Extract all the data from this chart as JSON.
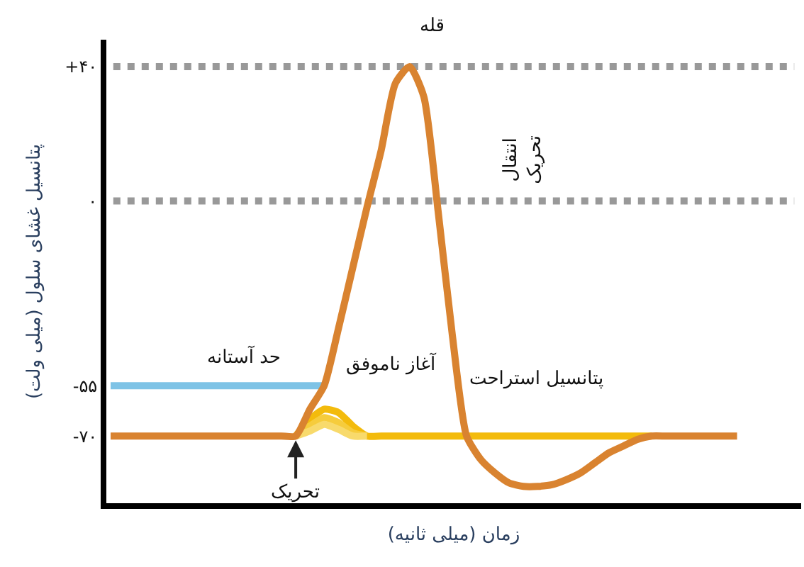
{
  "chart_data": {
    "type": "line",
    "xlabel": "زمان (میلی ثانیه)",
    "ylabel": "پتانسیل غشای سلول (میلی ولت)",
    "categories": [
      null,
      null,
      null,
      null,
      null,
      null,
      null,
      null,
      null,
      null,
      null,
      null,
      null,
      null,
      null,
      null,
      null,
      null,
      null,
      null,
      null,
      null,
      null,
      null,
      null,
      null,
      null,
      null,
      null,
      null,
      null,
      null,
      null,
      null,
      null,
      null,
      null,
      null,
      null,
      null,
      null,
      null,
      null,
      null,
      null
    ],
    "series": [
      {
        "color": "#7ec3e6",
        "values": [
          -55,
          -55,
          -55,
          -55,
          -55,
          -55,
          -55,
          -55,
          -55,
          -55,
          -55,
          -55,
          -55,
          -55,
          -55,
          -55,
          null,
          null,
          null,
          null,
          null,
          null,
          null,
          null,
          null,
          null,
          null,
          null,
          null,
          null,
          null,
          null,
          null,
          null,
          null,
          null,
          null,
          null,
          null,
          null,
          null,
          null,
          null,
          null,
          null
        ]
      },
      {
        "color": "#f3bb0c",
        "values": [
          null,
          null,
          null,
          null,
          null,
          null,
          null,
          null,
          null,
          null,
          null,
          null,
          null,
          -70,
          -65,
          -62,
          -63,
          -67,
          -70,
          -70,
          -70,
          -70,
          -70,
          -70,
          -70,
          -70,
          -70,
          -70,
          -70,
          -70,
          -70,
          -70,
          -70,
          -70,
          -70,
          -70,
          -70,
          -70,
          -70,
          null,
          null,
          null,
          null,
          null,
          null
        ]
      },
      {
        "color": "#f6cc3c",
        "values": [
          null,
          null,
          null,
          null,
          null,
          null,
          null,
          null,
          null,
          null,
          null,
          null,
          null,
          -70,
          -67,
          -64.5,
          -66,
          -69,
          -70,
          null,
          null,
          null,
          null,
          null,
          null,
          null,
          null,
          null,
          null,
          null,
          null,
          null,
          null,
          null,
          null,
          null,
          null,
          null,
          null,
          null,
          null,
          null,
          null,
          null,
          null
        ]
      },
      {
        "color": "#f8da6c",
        "values": [
          null,
          null,
          null,
          null,
          null,
          null,
          null,
          null,
          null,
          null,
          null,
          null,
          null,
          -70,
          -68.5,
          -66.5,
          -68,
          -70,
          -70,
          null,
          null,
          null,
          null,
          null,
          null,
          null,
          null,
          null,
          null,
          null,
          null,
          null,
          null,
          null,
          null,
          null,
          null,
          null,
          null,
          null,
          null,
          null,
          null,
          null,
          null
        ]
      },
      {
        "color": "#d98330",
        "values": [
          -70,
          -70,
          -70,
          -70,
          -70,
          -70,
          -70,
          -70,
          -70,
          -70,
          -70,
          -70,
          -70,
          -70,
          -62,
          -55,
          -38,
          -20,
          -2,
          15,
          35,
          40,
          31,
          -3,
          -40,
          -70,
          -77,
          -81,
          -84,
          -85,
          -85,
          -84.5,
          -83,
          -81,
          -78,
          -75,
          -73,
          -71,
          -70,
          -70,
          -70,
          -70,
          -70,
          -70,
          -70
        ]
      }
    ],
    "ylim": [
      -90,
      48
    ],
    "yticks": [
      {
        "value": 40,
        "label": "+۴۰"
      },
      {
        "value": 0,
        "label": "۰"
      },
      {
        "value": -55,
        "label": "-۵۵"
      },
      {
        "value": -70,
        "label": "-۷۰"
      }
    ],
    "tick_labels": "y",
    "ref_lines": [
      {
        "axis": "y",
        "value": 40,
        "color": "#999999",
        "line_style": "dotted"
      },
      {
        "axis": "y",
        "value": 0,
        "color": "#999999",
        "line_style": "dotted"
      }
    ],
    "annotations": [
      "قله",
      "انتقال تحریک",
      "حد آستانه",
      "آغاز ناموفق",
      "پتانسیل استراحت",
      "تحریک"
    ],
    "legend": false,
    "grid": false,
    "marker": "none",
    "line_style": "solid"
  }
}
